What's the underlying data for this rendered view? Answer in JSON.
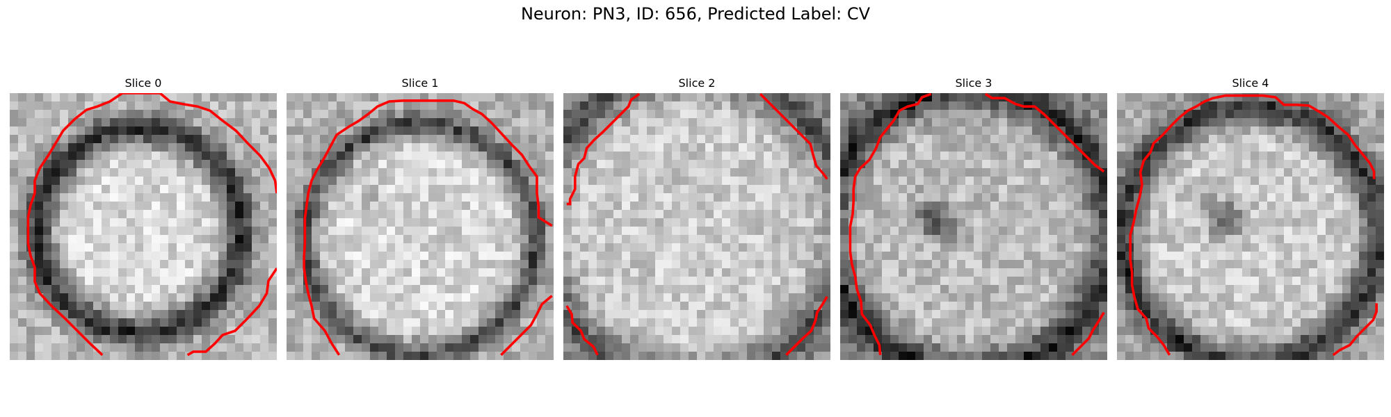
{
  "figure": {
    "title": "Neuron: PN3, ID: 656, Predicted Label: CV",
    "contour_color": "#ff0000",
    "colormap": "grayscale"
  },
  "panels": [
    {
      "title": "Slice 0"
    },
    {
      "title": "Slice 1"
    },
    {
      "title": "Slice 2"
    },
    {
      "title": "Slice 3"
    },
    {
      "title": "Slice 4"
    }
  ]
}
